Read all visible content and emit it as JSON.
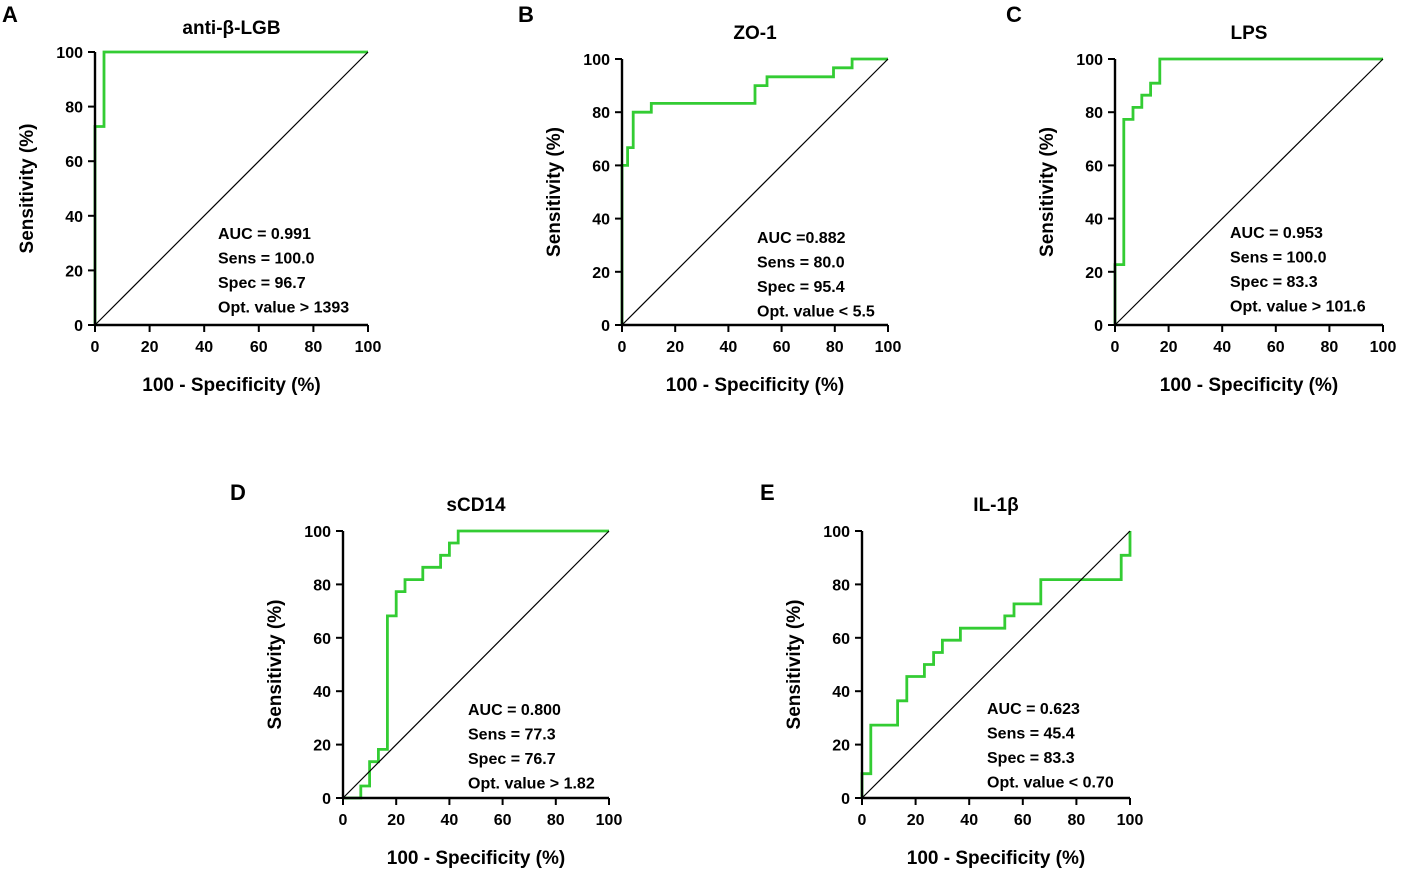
{
  "figure": {
    "curve_color": "#33cc33",
    "ref_line_color": "#000000"
  },
  "chart_data": [
    {
      "type": "line",
      "panel": "A",
      "title": "anti-β-LGB",
      "xlabel": "100 - Specificity (%)",
      "ylabel": "Sensitivity (%)",
      "xlim": [
        0,
        100
      ],
      "ylim": [
        0,
        100
      ],
      "xticks": [
        "0",
        "20",
        "40",
        "60",
        "80",
        "100"
      ],
      "yticks": [
        "0",
        "20",
        "40",
        "60",
        "80",
        "100"
      ],
      "series": [
        {
          "name": "ROC",
          "x": [
            0,
            0,
            3.3,
            3.3,
            100
          ],
          "y": [
            0,
            72.7,
            72.7,
            100,
            100
          ]
        },
        {
          "name": "reference",
          "x": [
            0,
            100
          ],
          "y": [
            0,
            100
          ]
        }
      ],
      "stats": [
        "AUC = 0.991",
        "Sens = 100.0",
        "Spec = 96.7",
        "Opt. value > 1393"
      ]
    },
    {
      "type": "line",
      "panel": "B",
      "title": "ZO-1",
      "xlabel": "100 - Specificity (%)",
      "ylabel": "Sensitivity (%)",
      "xlim": [
        0,
        100
      ],
      "ylim": [
        0,
        100
      ],
      "xticks": [
        "0",
        "20",
        "40",
        "60",
        "80",
        "100"
      ],
      "yticks": [
        "0",
        "20",
        "40",
        "60",
        "80",
        "100"
      ],
      "series": [
        {
          "name": "ROC",
          "x": [
            0,
            0,
            2.1,
            2.1,
            4.2,
            4.2,
            11,
            11,
            50,
            50,
            54.5,
            54.5,
            79.5,
            79.5,
            86.5,
            86.5,
            100
          ],
          "y": [
            0,
            60,
            60,
            66.7,
            66.7,
            80,
            80,
            83.3,
            83.3,
            90,
            90,
            93.3,
            93.3,
            96.7,
            96.7,
            100,
            100
          ]
        },
        {
          "name": "reference",
          "x": [
            0,
            100
          ],
          "y": [
            0,
            100
          ]
        }
      ],
      "stats": [
        "AUC =0.882",
        "Sens = 80.0",
        "Spec = 95.4",
        "Opt. value < 5.5"
      ]
    },
    {
      "type": "line",
      "panel": "C",
      "title": "LPS",
      "xlabel": "100 - Specificity (%)",
      "ylabel": "Sensitivity (%)",
      "xlim": [
        0,
        100
      ],
      "ylim": [
        0,
        100
      ],
      "xticks": [
        "0",
        "20",
        "40",
        "60",
        "80",
        "100"
      ],
      "yticks": [
        "0",
        "20",
        "40",
        "60",
        "80",
        "100"
      ],
      "series": [
        {
          "name": "ROC",
          "x": [
            0,
            0,
            3.3,
            3.3,
            6.7,
            6.7,
            10,
            10,
            13.3,
            13.3,
            16.7,
            16.7,
            100
          ],
          "y": [
            0,
            22.7,
            22.7,
            77.3,
            77.3,
            81.8,
            81.8,
            86.4,
            86.4,
            90.9,
            90.9,
            100,
            100
          ]
        },
        {
          "name": "reference",
          "x": [
            0,
            100
          ],
          "y": [
            0,
            100
          ]
        }
      ],
      "stats": [
        "AUC = 0.953",
        "Sens = 100.0",
        "Spec = 83.3",
        "Opt. value > 101.6"
      ]
    },
    {
      "type": "line",
      "panel": "D",
      "title": "sCD14",
      "xlabel": "100 - Specificity (%)",
      "ylabel": "Sensitivity (%)",
      "xlim": [
        0,
        100
      ],
      "ylim": [
        0,
        100
      ],
      "xticks": [
        "0",
        "20",
        "40",
        "60",
        "80",
        "100"
      ],
      "yticks": [
        "0",
        "20",
        "40",
        "60",
        "80",
        "100"
      ],
      "series": [
        {
          "name": "ROC",
          "x": [
            0,
            6.7,
            6.7,
            10,
            10,
            13.3,
            13.3,
            16.7,
            16.7,
            20,
            20,
            23.3,
            23.3,
            30,
            30,
            36.7,
            36.7,
            40,
            40,
            43.3,
            43.3,
            100
          ],
          "y": [
            0,
            0,
            4.5,
            4.5,
            13.6,
            13.6,
            18.2,
            18.2,
            68.2,
            68.2,
            77.3,
            77.3,
            81.8,
            81.8,
            86.4,
            86.4,
            90.9,
            90.9,
            95.5,
            95.5,
            100,
            100
          ]
        },
        {
          "name": "reference",
          "x": [
            0,
            100
          ],
          "y": [
            0,
            100
          ]
        }
      ],
      "stats": [
        "AUC = 0.800",
        "Sens = 77.3",
        "Spec = 76.7",
        "Opt. value > 1.82"
      ]
    },
    {
      "type": "line",
      "panel": "E",
      "title": "IL-1β",
      "xlabel": "100 - Specificity (%)",
      "ylabel": "Sensitivity (%)",
      "xlim": [
        0,
        100
      ],
      "ylim": [
        0,
        100
      ],
      "xticks": [
        "0",
        "20",
        "40",
        "60",
        "80",
        "100"
      ],
      "yticks": [
        "0",
        "20",
        "40",
        "60",
        "80",
        "100"
      ],
      "series": [
        {
          "name": "ROC",
          "x": [
            0,
            0,
            3.3,
            3.3,
            13.3,
            13.3,
            16.7,
            16.7,
            23.3,
            23.3,
            26.7,
            26.7,
            30,
            30,
            36.7,
            36.7,
            53.3,
            53.3,
            56.7,
            56.7,
            63.3,
            63.3,
            66.7,
            66.7,
            96.7,
            96.7,
            100,
            100
          ],
          "y": [
            0,
            9.1,
            9.1,
            27.3,
            27.3,
            36.4,
            36.4,
            45.5,
            45.5,
            50,
            50,
            54.5,
            54.5,
            59.1,
            59.1,
            63.6,
            63.6,
            68.2,
            68.2,
            72.7,
            72.7,
            72.7,
            72.7,
            81.8,
            81.8,
            90.9,
            90.9,
            100
          ]
        },
        {
          "name": "reference",
          "x": [
            0,
            100
          ],
          "y": [
            0,
            100
          ]
        }
      ],
      "stats": [
        "AUC = 0.623",
        "Sens = 45.4",
        "Spec = 83.3",
        "Opt. value < 0.70"
      ]
    }
  ]
}
